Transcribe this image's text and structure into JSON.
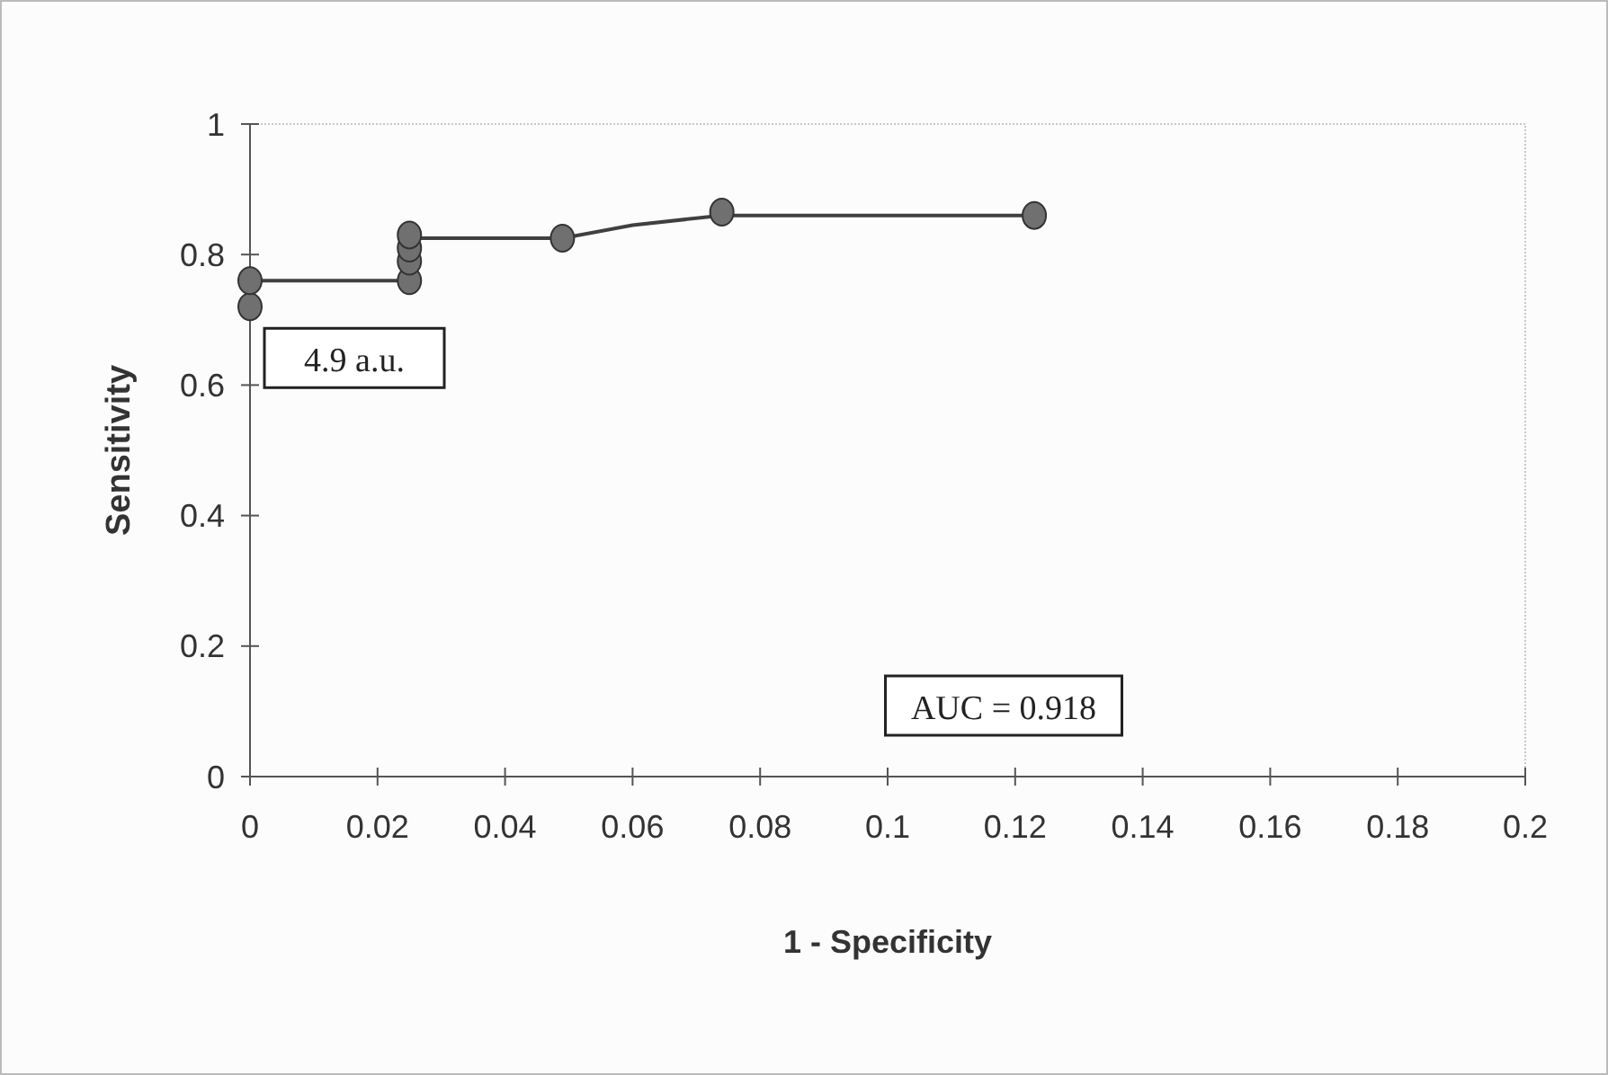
{
  "chart_data": {
    "type": "line",
    "xlabel": "1 - Specificity",
    "ylabel": "Sensitivity",
    "xlim": [
      0,
      0.2
    ],
    "ylim": [
      0,
      1
    ],
    "xticks": [
      0,
      0.02,
      0.04,
      0.06,
      0.08,
      0.1,
      0.12,
      0.14,
      0.16,
      0.18,
      0.2
    ],
    "yticks": [
      0,
      0.2,
      0.4,
      0.6,
      0.8,
      1
    ],
    "grid": false,
    "series": [
      {
        "color": "#404040",
        "marker": "none",
        "x": [
          0,
          0.025,
          0.025,
          0.049,
          0.06,
          0.074,
          0.123
        ],
        "values": [
          0.76,
          0.76,
          0.825,
          0.825,
          0.845,
          0.86,
          0.86
        ]
      },
      {
        "type": "scatter",
        "color": "#707070",
        "marker": "circle",
        "x": [
          0,
          0,
          0.025,
          0.025,
          0.025,
          0.025,
          0.049,
          0.074,
          0.123
        ],
        "values": [
          0.72,
          0.76,
          0.76,
          0.79,
          0.81,
          0.83,
          0.825,
          0.865,
          0.86
        ]
      }
    ],
    "annotations": [
      {
        "text": "4.9 a.u.",
        "x": 0,
        "y": 0.72
      },
      "AUC = 0.918"
    ]
  }
}
